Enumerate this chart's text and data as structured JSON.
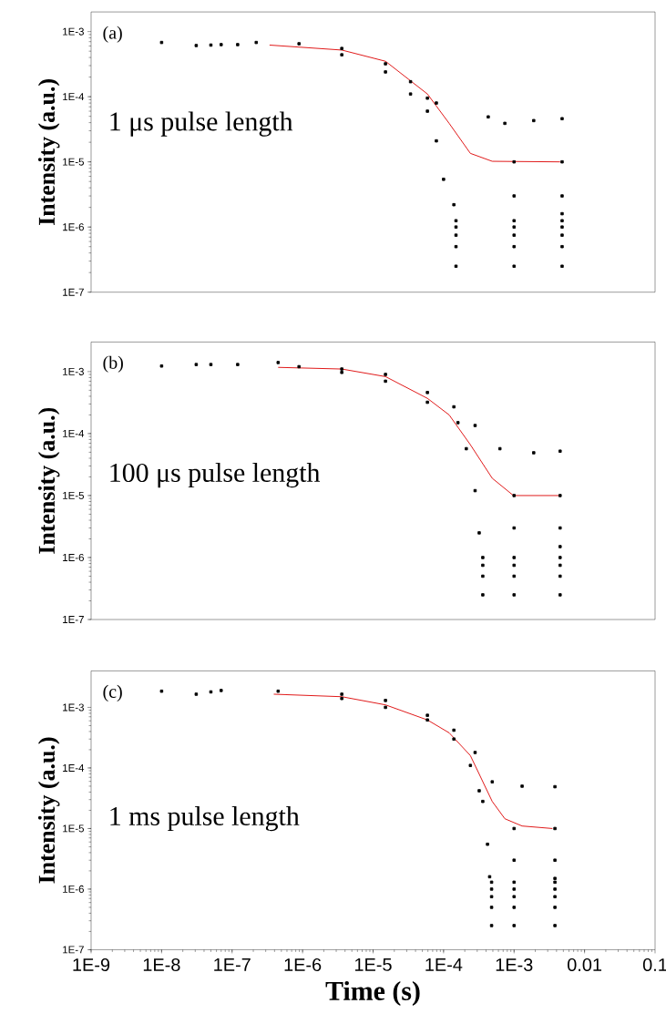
{
  "chart_data": [
    {
      "type": "scatter",
      "ylabel": "Intensity (a.u.)",
      "annotations": [
        "(a)",
        "1 μs pulse length"
      ],
      "log": "xy",
      "xlim": [
        1e-09,
        0.1
      ],
      "ylim": [
        1e-07,
        0.002
      ],
      "tick_labels": "y",
      "marker": "square",
      "yticks": [
        {
          "value": 1e-07,
          "label": "1E-7"
        },
        {
          "value": 1e-06,
          "label": "1E-6"
        },
        {
          "value": 1e-05,
          "label": "1E-5"
        },
        {
          "value": 0.0001,
          "label": "1E-4"
        },
        {
          "value": 0.001,
          "label": "1E-3"
        }
      ],
      "series": [
        {
          "color": "#000000",
          "x": [
            1e-08,
            3.1e-08,
            5e-08,
            7e-08,
            1.2e-07,
            2.2e-07,
            8.9e-07,
            3.6e-06,
            1.5e-05,
            3.4e-05,
            5.9e-05,
            7.9e-05,
            0.00043,
            0.00074,
            0.0019,
            0.0048,
            3.6e-06,
            1.5e-05,
            3.4e-05,
            5.9e-05,
            7.9e-05,
            0.0001,
            0.00014,
            0.001,
            0.001,
            0.0048,
            0.0048,
            0.0048,
            0.00015,
            0.001,
            0.0048,
            0.00015,
            0.001,
            0.0048,
            0.00015,
            0.001,
            0.0048,
            0.00015,
            0.001,
            0.0048,
            0.00015,
            0.001,
            0.0048
          ],
          "values": [
            0.00068,
            0.00061,
            0.00062,
            0.00063,
            0.00063,
            0.00068,
            0.00065,
            0.00055,
            0.00032,
            0.00017,
            9.5e-05,
            8e-05,
            4.9e-05,
            3.9e-05,
            4.3e-05,
            4.6e-05,
            0.00044,
            0.00024,
            0.00011,
            6e-05,
            2.1e-05,
            5.4e-06,
            2.2e-06,
            1e-05,
            3e-06,
            1e-05,
            3e-06,
            1.6e-06,
            2.5e-07,
            2.5e-07,
            2.5e-07,
            5e-07,
            5e-07,
            5e-07,
            7.5e-07,
            7.5e-07,
            7.5e-07,
            1e-06,
            1e-06,
            1e-06,
            1.25e-06,
            1.25e-06,
            1.25e-06
          ]
        },
        {
          "type": "line",
          "color": "#dd0000",
          "marker": "none",
          "x": [
            3.4e-07,
            3.6e-06,
            1.5e-05,
            5.9e-05,
            0.00012,
            0.00024,
            0.00049,
            0.0045
          ],
          "values": [
            0.00062,
            0.00052,
            0.00035,
            0.00011,
            3.9e-05,
            1.35e-05,
            1.02e-05,
            1e-05
          ]
        }
      ]
    },
    {
      "type": "scatter",
      "ylabel": "Intensity (a.u.)",
      "annotations": [
        "(b)",
        "100 μs pulse length"
      ],
      "log": "xy",
      "xlim": [
        1e-09,
        0.1
      ],
      "ylim": [
        1e-07,
        0.003
      ],
      "tick_labels": "y",
      "marker": "square",
      "yticks": [
        {
          "value": 1e-07,
          "label": "1E-7"
        },
        {
          "value": 1e-06,
          "label": "1E-6"
        },
        {
          "value": 1e-05,
          "label": "1E-5"
        },
        {
          "value": 0.0001,
          "label": "1E-4"
        },
        {
          "value": 0.001,
          "label": "1E-3"
        }
      ],
      "series": [
        {
          "color": "#000000",
          "x": [
            1e-08,
            3.1e-08,
            5e-08,
            1.2e-07,
            4.5e-07,
            3.6e-06,
            1.5e-05,
            5.9e-05,
            0.00014,
            0.00028,
            0.00063,
            0.0019,
            0.0045,
            8.9e-07,
            3.6e-06,
            1.5e-05,
            5.9e-05,
            0.00016,
            0.00021,
            0.00028,
            0.00032,
            0.001,
            0.001,
            0.0045,
            0.0045,
            0.0045,
            0.00036,
            0.001,
            0.0045,
            0.00036,
            0.001,
            0.0045,
            0.00036,
            0.001,
            0.0045,
            0.00036,
            0.001,
            0.0045
          ],
          "values": [
            0.00123,
            0.0013,
            0.0013,
            0.0013,
            0.0014,
            0.0011,
            0.0009,
            0.00046,
            0.00027,
            0.000135,
            5.7e-05,
            4.9e-05,
            5.2e-05,
            0.0012,
            0.00097,
            0.0007,
            0.00032,
            0.00015,
            5.7e-05,
            1.2e-05,
            2.5e-06,
            1e-05,
            3e-06,
            1e-05,
            3e-06,
            1.5e-06,
            2.5e-07,
            2.5e-07,
            2.5e-07,
            5e-07,
            5e-07,
            5e-07,
            7.5e-07,
            7.5e-07,
            7.5e-07,
            1e-06,
            1e-06,
            1e-06
          ]
        },
        {
          "type": "line",
          "color": "#dd0000",
          "marker": "none",
          "x": [
            4.5e-07,
            3.6e-06,
            1.5e-05,
            5.9e-05,
            0.00012,
            0.00024,
            0.00049,
            0.00098,
            0.0045
          ],
          "values": [
            0.00117,
            0.0011,
            0.00083,
            0.00037,
            0.0002,
            6.6e-05,
            1.9e-05,
            1e-05,
            1e-05
          ]
        }
      ]
    },
    {
      "type": "scatter",
      "ylabel": "Intensity (a.u.)",
      "xlabel": "Time (s)",
      "annotations": [
        "(c)",
        "1 ms pulse length"
      ],
      "log": "xy",
      "xlim": [
        1e-09,
        0.1
      ],
      "ylim": [
        1e-07,
        0.004
      ],
      "marker": "square",
      "xticks": [
        {
          "value": 1e-09,
          "label": "1E-9"
        },
        {
          "value": 1e-08,
          "label": "1E-8"
        },
        {
          "value": 1e-07,
          "label": "1E-7"
        },
        {
          "value": 1e-06,
          "label": "1E-6"
        },
        {
          "value": 1e-05,
          "label": "1E-5"
        },
        {
          "value": 0.0001,
          "label": "1E-4"
        },
        {
          "value": 0.001,
          "label": "1E-3"
        },
        0.01,
        0.1
      ],
      "yticks": [
        {
          "value": 1e-07,
          "label": "1E-7"
        },
        {
          "value": 1e-06,
          "label": "1E-6"
        },
        {
          "value": 1e-05,
          "label": "1E-5"
        },
        {
          "value": 0.0001,
          "label": "1E-4"
        },
        {
          "value": 0.001,
          "label": "1E-3"
        }
      ],
      "series": [
        {
          "color": "#000000",
          "x": [
            1e-08,
            3.1e-08,
            5e-08,
            7e-08,
            4.5e-07,
            3.6e-06,
            1.5e-05,
            5.9e-05,
            0.00014,
            0.00028,
            0.00049,
            0.0013,
            0.0038,
            3.6e-06,
            1.5e-05,
            5.9e-05,
            0.00014,
            0.00024,
            0.00032,
            0.00036,
            0.00042,
            0.00045,
            0.001,
            0.001,
            0.0038,
            0.0038,
            0.0038,
            0.00048,
            0.001,
            0.0038,
            0.00048,
            0.001,
            0.0038,
            0.00048,
            0.001,
            0.0038,
            0.00048,
            0.001,
            0.0038,
            0.00048,
            0.001,
            0.0038
          ],
          "values": [
            0.00185,
            0.00165,
            0.0018,
            0.0019,
            0.00185,
            0.00165,
            0.0013,
            0.00074,
            0.00042,
            0.00018,
            5.9e-05,
            5e-05,
            4.9e-05,
            0.0014,
            0.001,
            0.00062,
            0.0003,
            0.00011,
            4.2e-05,
            2.8e-05,
            5.5e-06,
            1.6e-06,
            1e-05,
            3e-06,
            1e-05,
            3e-06,
            1.5e-06,
            2.5e-07,
            2.5e-07,
            2.5e-07,
            5e-07,
            5e-07,
            5e-07,
            7.5e-07,
            7.5e-07,
            7.5e-07,
            1e-06,
            1e-06,
            1e-06,
            1.3e-06,
            1.3e-06,
            1.3e-06
          ]
        },
        {
          "type": "line",
          "color": "#dd0000",
          "marker": "none",
          "x": [
            3.9e-07,
            3.6e-06,
            1.5e-05,
            5.9e-05,
            0.00012,
            0.00024,
            0.00049,
            0.00074,
            0.0013,
            0.0035
          ],
          "values": [
            0.00165,
            0.0015,
            0.0011,
            0.00062,
            0.00038,
            0.00016,
            2.8e-05,
            1.45e-05,
            1.1e-05,
            1e-05
          ]
        }
      ]
    }
  ]
}
